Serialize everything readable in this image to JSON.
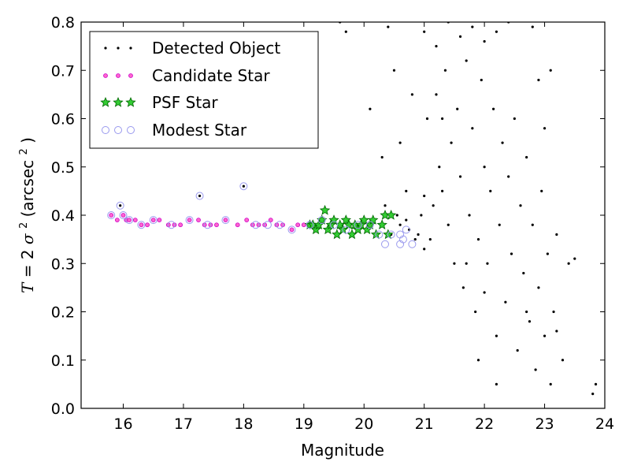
{
  "chart_data": {
    "type": "scatter",
    "xlabel": "Magnitude",
    "ylabel_italic": "T",
    "ylabel_mid": " = 2",
    "ylabel_sigma": "σ",
    "ylabel_sigma_sup": "2",
    "ylabel_unit": " (arcsec",
    "ylabel_unit_sup": "2",
    "ylabel_close": ")",
    "xlim": [
      15.3,
      24.0
    ],
    "ylim": [
      0.0,
      0.8
    ],
    "xticks": [
      "16",
      "17",
      "18",
      "19",
      "20",
      "21",
      "22",
      "23",
      "24"
    ],
    "yticks": [
      "0.0",
      "0.1",
      "0.2",
      "0.3",
      "0.4",
      "0.5",
      "0.6",
      "0.7",
      "0.8"
    ],
    "grid": false,
    "legend_position": "top-left",
    "colors": {
      "detected": "#000000",
      "candidate_fill": "#ff66cc",
      "candidate_edge": "#cc00cc",
      "psf_fill": "#33cc33",
      "psf_edge": "#006600",
      "modest_edge": "#9999ee"
    },
    "series": [
      {
        "name": "Detected Object",
        "marker": "dot",
        "points": [
          [
            15.95,
            0.42
          ],
          [
            17.27,
            0.44
          ],
          [
            18.0,
            0.46
          ],
          [
            20.3,
            0.38
          ],
          [
            20.35,
            0.42
          ],
          [
            20.45,
            0.36
          ],
          [
            20.55,
            0.4
          ],
          [
            20.6,
            0.38
          ],
          [
            20.7,
            0.39
          ],
          [
            20.75,
            0.37
          ],
          [
            20.85,
            0.35
          ],
          [
            20.9,
            0.36
          ],
          [
            20.95,
            0.4
          ],
          [
            21.0,
            0.33
          ],
          [
            21.05,
            0.6
          ],
          [
            21.1,
            0.35
          ],
          [
            21.15,
            0.42
          ],
          [
            21.2,
            0.65
          ],
          [
            21.25,
            0.5
          ],
          [
            21.3,
            0.45
          ],
          [
            21.35,
            0.7
          ],
          [
            21.4,
            0.38
          ],
          [
            21.45,
            0.55
          ],
          [
            21.5,
            0.3
          ],
          [
            21.55,
            0.62
          ],
          [
            21.6,
            0.48
          ],
          [
            21.65,
            0.25
          ],
          [
            21.7,
            0.72
          ],
          [
            21.75,
            0.4
          ],
          [
            21.8,
            0.58
          ],
          [
            21.85,
            0.2
          ],
          [
            21.9,
            0.35
          ],
          [
            21.95,
            0.68
          ],
          [
            22.0,
            0.5
          ],
          [
            22.05,
            0.3
          ],
          [
            22.1,
            0.45
          ],
          [
            22.15,
            0.62
          ],
          [
            22.2,
            0.15
          ],
          [
            22.25,
            0.38
          ],
          [
            22.3,
            0.55
          ],
          [
            22.35,
            0.22
          ],
          [
            22.4,
            0.48
          ],
          [
            22.45,
            0.32
          ],
          [
            22.5,
            0.6
          ],
          [
            22.55,
            0.12
          ],
          [
            22.6,
            0.42
          ],
          [
            22.65,
            0.28
          ],
          [
            22.7,
            0.52
          ],
          [
            22.75,
            0.18
          ],
          [
            22.8,
            0.38
          ],
          [
            22.85,
            0.08
          ],
          [
            22.9,
            0.25
          ],
          [
            22.95,
            0.45
          ],
          [
            23.0,
            0.15
          ],
          [
            23.05,
            0.32
          ],
          [
            23.1,
            0.05
          ],
          [
            23.15,
            0.2
          ],
          [
            23.2,
            0.36
          ],
          [
            23.3,
            0.1
          ],
          [
            23.4,
            0.3
          ],
          [
            23.5,
            0.31
          ],
          [
            23.8,
            0.03
          ],
          [
            23.85,
            0.05
          ],
          [
            21.0,
            0.78
          ],
          [
            21.2,
            0.75
          ],
          [
            21.4,
            0.8
          ],
          [
            21.6,
            0.77
          ],
          [
            21.8,
            0.79
          ],
          [
            22.0,
            0.76
          ],
          [
            22.2,
            0.78
          ],
          [
            22.4,
            0.8
          ],
          [
            22.8,
            0.79
          ],
          [
            22.9,
            0.68
          ],
          [
            23.0,
            0.58
          ],
          [
            23.1,
            0.7
          ],
          [
            19.6,
            0.8
          ],
          [
            20.4,
            0.79
          ],
          [
            20.6,
            0.55
          ],
          [
            20.8,
            0.65
          ],
          [
            20.3,
            0.52
          ],
          [
            20.1,
            0.62
          ],
          [
            20.5,
            0.7
          ],
          [
            19.7,
            0.78
          ],
          [
            20.7,
            0.45
          ],
          [
            21.0,
            0.44
          ],
          [
            21.3,
            0.6
          ],
          [
            21.9,
            0.1
          ],
          [
            22.2,
            0.05
          ],
          [
            22.7,
            0.2
          ],
          [
            23.2,
            0.16
          ],
          [
            21.7,
            0.3
          ],
          [
            22.0,
            0.24
          ]
        ]
      },
      {
        "name": "Candidate Star",
        "marker": "small-circle",
        "points": [
          [
            15.8,
            0.4
          ],
          [
            15.9,
            0.39
          ],
          [
            16.0,
            0.4
          ],
          [
            16.05,
            0.39
          ],
          [
            16.1,
            0.39
          ],
          [
            16.2,
            0.39
          ],
          [
            16.3,
            0.38
          ],
          [
            16.4,
            0.38
          ],
          [
            16.5,
            0.39
          ],
          [
            16.6,
            0.39
          ],
          [
            16.75,
            0.38
          ],
          [
            16.85,
            0.38
          ],
          [
            16.95,
            0.38
          ],
          [
            17.1,
            0.39
          ],
          [
            17.25,
            0.39
          ],
          [
            17.35,
            0.38
          ],
          [
            17.45,
            0.38
          ],
          [
            17.55,
            0.38
          ],
          [
            17.7,
            0.39
          ],
          [
            17.9,
            0.38
          ],
          [
            18.05,
            0.39
          ],
          [
            18.15,
            0.38
          ],
          [
            18.25,
            0.38
          ],
          [
            18.35,
            0.38
          ],
          [
            18.45,
            0.39
          ],
          [
            18.55,
            0.38
          ],
          [
            18.65,
            0.38
          ],
          [
            18.8,
            0.37
          ],
          [
            18.9,
            0.38
          ],
          [
            19.0,
            0.38
          ]
        ]
      },
      {
        "name": "PSF Star",
        "marker": "star",
        "points": [
          [
            19.1,
            0.38
          ],
          [
            19.15,
            0.38
          ],
          [
            19.2,
            0.37
          ],
          [
            19.25,
            0.38
          ],
          [
            19.3,
            0.39
          ],
          [
            19.35,
            0.41
          ],
          [
            19.4,
            0.37
          ],
          [
            19.45,
            0.38
          ],
          [
            19.5,
            0.39
          ],
          [
            19.55,
            0.36
          ],
          [
            19.6,
            0.38
          ],
          [
            19.65,
            0.37
          ],
          [
            19.7,
            0.39
          ],
          [
            19.75,
            0.38
          ],
          [
            19.8,
            0.36
          ],
          [
            19.85,
            0.38
          ],
          [
            19.9,
            0.37
          ],
          [
            19.95,
            0.38
          ],
          [
            20.0,
            0.39
          ],
          [
            20.05,
            0.37
          ],
          [
            20.1,
            0.38
          ],
          [
            20.15,
            0.39
          ],
          [
            20.2,
            0.36
          ],
          [
            20.3,
            0.38
          ],
          [
            20.35,
            0.4
          ],
          [
            20.4,
            0.36
          ],
          [
            20.45,
            0.4
          ]
        ]
      },
      {
        "name": "Modest Star",
        "marker": "open-circle",
        "points": [
          [
            15.8,
            0.4
          ],
          [
            15.95,
            0.42
          ],
          [
            16.0,
            0.4
          ],
          [
            16.1,
            0.39
          ],
          [
            16.3,
            0.38
          ],
          [
            16.5,
            0.39
          ],
          [
            16.8,
            0.38
          ],
          [
            17.1,
            0.39
          ],
          [
            17.27,
            0.44
          ],
          [
            17.4,
            0.38
          ],
          [
            17.7,
            0.39
          ],
          [
            18.0,
            0.46
          ],
          [
            18.2,
            0.38
          ],
          [
            18.4,
            0.38
          ],
          [
            18.6,
            0.38
          ],
          [
            18.8,
            0.37
          ],
          [
            19.1,
            0.38
          ],
          [
            19.3,
            0.39
          ],
          [
            19.5,
            0.38
          ],
          [
            19.7,
            0.37
          ],
          [
            19.9,
            0.38
          ],
          [
            20.1,
            0.38
          ],
          [
            20.25,
            0.36
          ],
          [
            20.35,
            0.34
          ],
          [
            20.45,
            0.36
          ],
          [
            20.6,
            0.36
          ],
          [
            20.6,
            0.34
          ],
          [
            20.7,
            0.37
          ],
          [
            20.8,
            0.34
          ],
          [
            20.65,
            0.35
          ]
        ]
      }
    ]
  }
}
